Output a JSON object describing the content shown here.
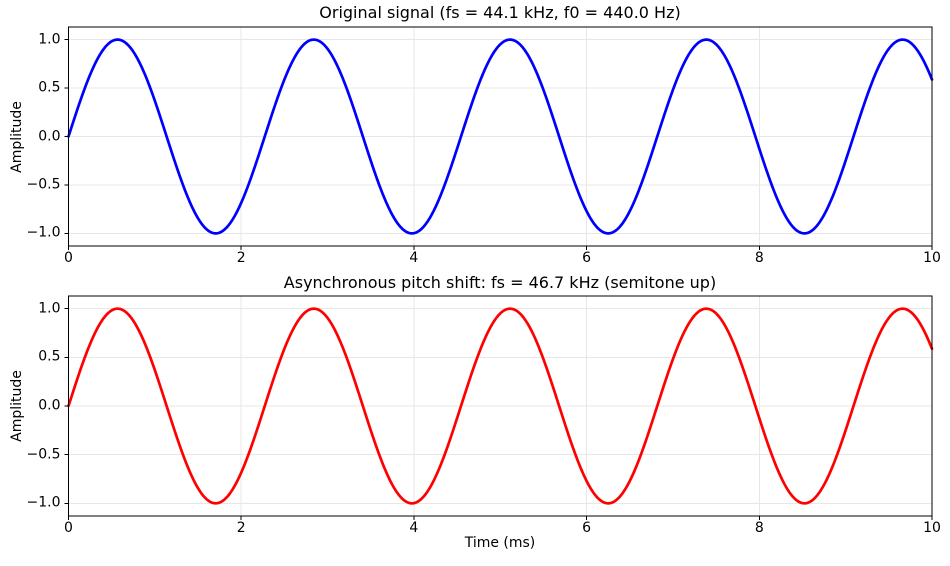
{
  "chart_data": [
    {
      "type": "line",
      "title": "Original signal (fs = 44.1 kHz, f0 = 440.0 Hz)",
      "xlabel": "",
      "ylabel": "Amplitude",
      "xlim": [
        0,
        10
      ],
      "ylim": [
        -1.13,
        1.13
      ],
      "grid": true,
      "legend_position": "none",
      "xticks": [
        {
          "v": 0,
          "label": "0"
        },
        {
          "v": 2,
          "label": "2"
        },
        {
          "v": 4,
          "label": "4"
        },
        {
          "v": 6,
          "label": "6"
        },
        {
          "v": 8,
          "label": "8"
        },
        {
          "v": 10,
          "label": "10"
        }
      ],
      "yticks": [
        {
          "v": -1.0,
          "label": "−1.0"
        },
        {
          "v": -0.5,
          "label": "−0.5"
        },
        {
          "v": 0.0,
          "label": "0.0"
        },
        {
          "v": 0.5,
          "label": "0.5"
        },
        {
          "v": 1.0,
          "label": "1.0"
        }
      ],
      "series": [
        {
          "name": "original-signal",
          "color": "#0000ff",
          "line_width": 2.7,
          "waveform": "sine",
          "amplitude": 1.0,
          "frequency_cycles_per_ms": 0.44,
          "phase_rad": 0.0,
          "x_start_ms": 0,
          "x_end_ms": 10
        }
      ]
    },
    {
      "type": "line",
      "title": "Asynchronous pitch shift: fs = 46.7 kHz (semitone up)",
      "xlabel": "Time (ms)",
      "ylabel": "Amplitude",
      "xlim": [
        0,
        10
      ],
      "ylim": [
        -1.13,
        1.13
      ],
      "grid": true,
      "legend_position": "none",
      "xticks": [
        {
          "v": 0,
          "label": "0"
        },
        {
          "v": 2,
          "label": "2"
        },
        {
          "v": 4,
          "label": "4"
        },
        {
          "v": 6,
          "label": "6"
        },
        {
          "v": 8,
          "label": "8"
        },
        {
          "v": 10,
          "label": "10"
        }
      ],
      "yticks": [
        {
          "v": -1.0,
          "label": "−1.0"
        },
        {
          "v": -0.5,
          "label": "−0.5"
        },
        {
          "v": 0.0,
          "label": "0.0"
        },
        {
          "v": 0.5,
          "label": "0.5"
        },
        {
          "v": 1.0,
          "label": "1.0"
        }
      ],
      "series": [
        {
          "name": "pitch-shifted-signal",
          "color": "#ff0000",
          "line_width": 2.7,
          "waveform": "sine",
          "amplitude": 1.0,
          "frequency_cycles_per_ms": 0.44,
          "phase_rad": 0.0,
          "x_start_ms": 0,
          "x_end_ms": 10
        }
      ]
    }
  ],
  "colors": {
    "background": "#ffffff",
    "grid": "#e7e7e7",
    "spine": "#000000",
    "tick": "#000000",
    "line_top": "#0000ff",
    "line_bottom": "#ff0000"
  }
}
